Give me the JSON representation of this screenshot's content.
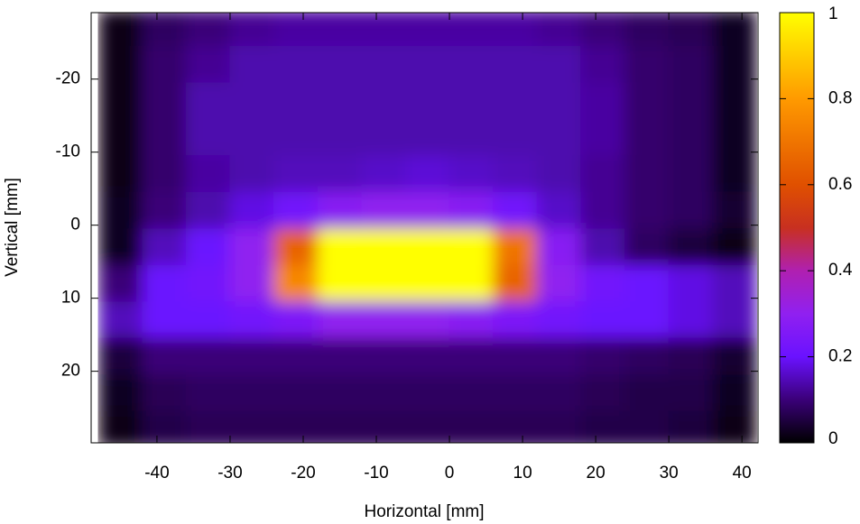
{
  "chart_data": {
    "type": "heatmap",
    "x_label": "Horizontal [mm]",
    "y_label": "Vertical [mm]",
    "x": [
      -45,
      -39,
      -33,
      -27,
      -21,
      -15,
      -9,
      -3,
      3,
      9,
      15,
      21,
      27,
      33,
      39
    ],
    "y": [
      -27,
      -22,
      -17,
      -12,
      -7,
      -2,
      3,
      8,
      13,
      18,
      23,
      28
    ],
    "z": [
      [
        0.02,
        0.08,
        0.1,
        0.12,
        0.13,
        0.13,
        0.13,
        0.13,
        0.13,
        0.13,
        0.12,
        0.1,
        0.08,
        0.07,
        0.03
      ],
      [
        0.02,
        0.09,
        0.12,
        0.14,
        0.14,
        0.14,
        0.14,
        0.14,
        0.14,
        0.14,
        0.14,
        0.12,
        0.09,
        0.08,
        0.03
      ],
      [
        0.02,
        0.09,
        0.14,
        0.14,
        0.14,
        0.14,
        0.14,
        0.14,
        0.14,
        0.14,
        0.14,
        0.13,
        0.09,
        0.08,
        0.03
      ],
      [
        0.02,
        0.09,
        0.14,
        0.14,
        0.14,
        0.14,
        0.14,
        0.14,
        0.14,
        0.14,
        0.14,
        0.13,
        0.09,
        0.08,
        0.03
      ],
      [
        0.02,
        0.09,
        0.13,
        0.14,
        0.15,
        0.15,
        0.16,
        0.17,
        0.16,
        0.15,
        0.14,
        0.12,
        0.09,
        0.08,
        0.03
      ],
      [
        0.03,
        0.1,
        0.14,
        0.18,
        0.22,
        0.28,
        0.3,
        0.3,
        0.28,
        0.22,
        0.16,
        0.12,
        0.09,
        0.08,
        0.04
      ],
      [
        0.03,
        0.15,
        0.2,
        0.3,
        0.65,
        1,
        1,
        1,
        1,
        0.7,
        0.28,
        0.14,
        0.08,
        0.05,
        0.02
      ],
      [
        0.1,
        0.2,
        0.22,
        0.3,
        0.75,
        1,
        1,
        1,
        1,
        0.65,
        0.3,
        0.22,
        0.2,
        0.18,
        0.15
      ],
      [
        0.15,
        0.2,
        0.2,
        0.22,
        0.25,
        0.3,
        0.3,
        0.3,
        0.28,
        0.25,
        0.22,
        0.2,
        0.2,
        0.18,
        0.15
      ],
      [
        0.05,
        0.1,
        0.1,
        0.1,
        0.1,
        0.1,
        0.1,
        0.1,
        0.1,
        0.1,
        0.1,
        0.09,
        0.08,
        0.07,
        0.04
      ],
      [
        0.03,
        0.07,
        0.08,
        0.08,
        0.08,
        0.08,
        0.08,
        0.08,
        0.08,
        0.08,
        0.08,
        0.07,
        0.06,
        0.06,
        0.03
      ],
      [
        0.02,
        0.06,
        0.07,
        0.07,
        0.07,
        0.07,
        0.07,
        0.07,
        0.07,
        0.07,
        0.07,
        0.06,
        0.06,
        0.05,
        0.02
      ]
    ],
    "xlim": [
      -49,
      42.2
    ],
    "xticks": [
      -40,
      -30,
      -20,
      -10,
      0,
      10,
      20,
      30,
      40
    ],
    "ylim": [
      29.8,
      -29.1
    ],
    "yticks": [
      -20,
      -10,
      0,
      10,
      20
    ],
    "zlim": [
      0,
      1
    ],
    "zticks": [
      0,
      0.2,
      0.4,
      0.6,
      0.8,
      1
    ],
    "palette": [
      {
        "value": 0,
        "color": "#000000"
      },
      {
        "value": 0.1,
        "color": "#3a0078"
      },
      {
        "value": 0.2,
        "color": "#6a12ff"
      },
      {
        "value": 0.3,
        "color": "#9020f0"
      },
      {
        "value": 0.4,
        "color": "#b020b0"
      },
      {
        "value": 0.5,
        "color": "#c83020"
      },
      {
        "value": 0.6,
        "color": "#e05000"
      },
      {
        "value": 0.8,
        "color": "#ff9a00"
      },
      {
        "value": 1,
        "color": "#ffff00"
      }
    ]
  }
}
